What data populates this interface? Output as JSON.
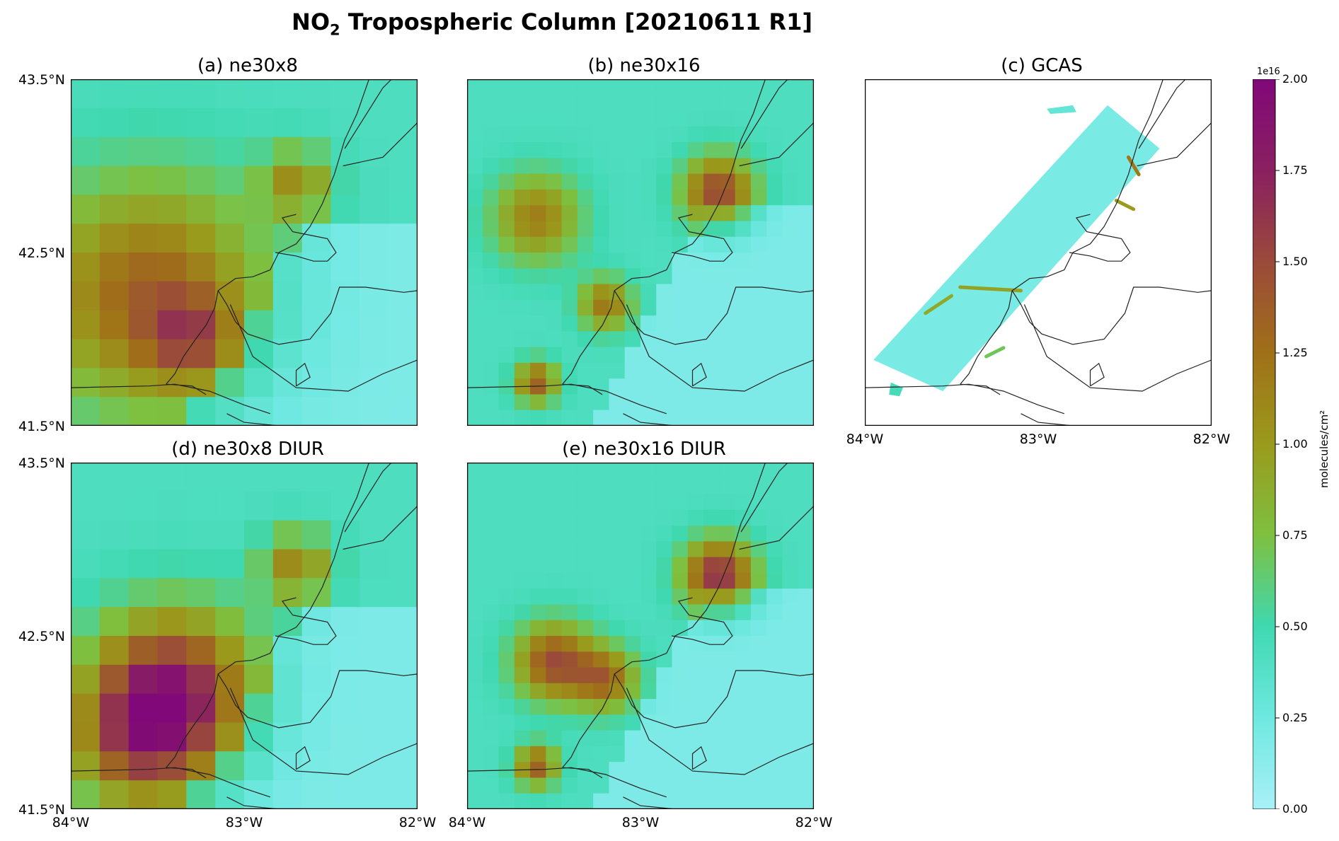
{
  "figure": {
    "title_main": "NO",
    "title_sub": "2",
    "title_rest": " Tropospheric Column [20210611 R1]"
  },
  "panels": [
    {
      "id": "a",
      "title": "(a) ne30x8",
      "hotspots": [
        [
          -83.55,
          42.25,
          0.92,
          0.65
        ],
        [
          -82.7,
          42.9,
          0.62,
          0.2
        ],
        [
          -83.3,
          42.0,
          0.55,
          0.25
        ]
      ]
    },
    {
      "id": "b",
      "title": "(b) ne30x16",
      "hotspots": [
        [
          -82.55,
          42.85,
          1.1,
          0.2
        ],
        [
          -83.6,
          41.75,
          0.95,
          0.12
        ],
        [
          -83.2,
          42.2,
          0.8,
          0.15
        ],
        [
          -83.6,
          42.7,
          0.75,
          0.25
        ]
      ]
    },
    {
      "id": "c",
      "title": "(c) GCAS"
    },
    {
      "id": "d",
      "title": "(d) ne30x8 DIUR",
      "hotspots": [
        [
          -83.4,
          42.2,
          1.15,
          0.45
        ],
        [
          -83.6,
          41.9,
          0.9,
          0.4
        ],
        [
          -82.7,
          42.9,
          0.7,
          0.2
        ]
      ]
    },
    {
      "id": "e",
      "title": "(e) ne30x16 DIUR",
      "hotspots": [
        [
          -82.55,
          42.85,
          1.25,
          0.2
        ],
        [
          -83.5,
          42.35,
          1.05,
          0.22
        ],
        [
          -83.6,
          41.75,
          0.95,
          0.12
        ],
        [
          -83.2,
          42.25,
          0.85,
          0.18
        ]
      ]
    }
  ],
  "axes": {
    "lat_ticks": [
      "43.5°N",
      "42.5°N",
      "41.5°N"
    ],
    "lon_ticks": [
      "84°W",
      "83°W",
      "82°W"
    ],
    "lon_range": [
      -84,
      -82
    ],
    "lat_range": [
      41.5,
      43.5
    ]
  },
  "colorbar": {
    "exponent": "1e16",
    "units": "molecules/cm²",
    "ticks": [
      "0.00",
      "0.25",
      "0.50",
      "0.75",
      "1.00",
      "1.25",
      "1.50",
      "1.75",
      "2.00"
    ],
    "range": [
      0,
      2
    ],
    "colors": [
      "#a8f0f8",
      "#6ee8e0",
      "#3fd8b0",
      "#7ec040",
      "#9a9a1c",
      "#a07018",
      "#9a4a3a",
      "#8a2060",
      "#800878"
    ]
  }
}
